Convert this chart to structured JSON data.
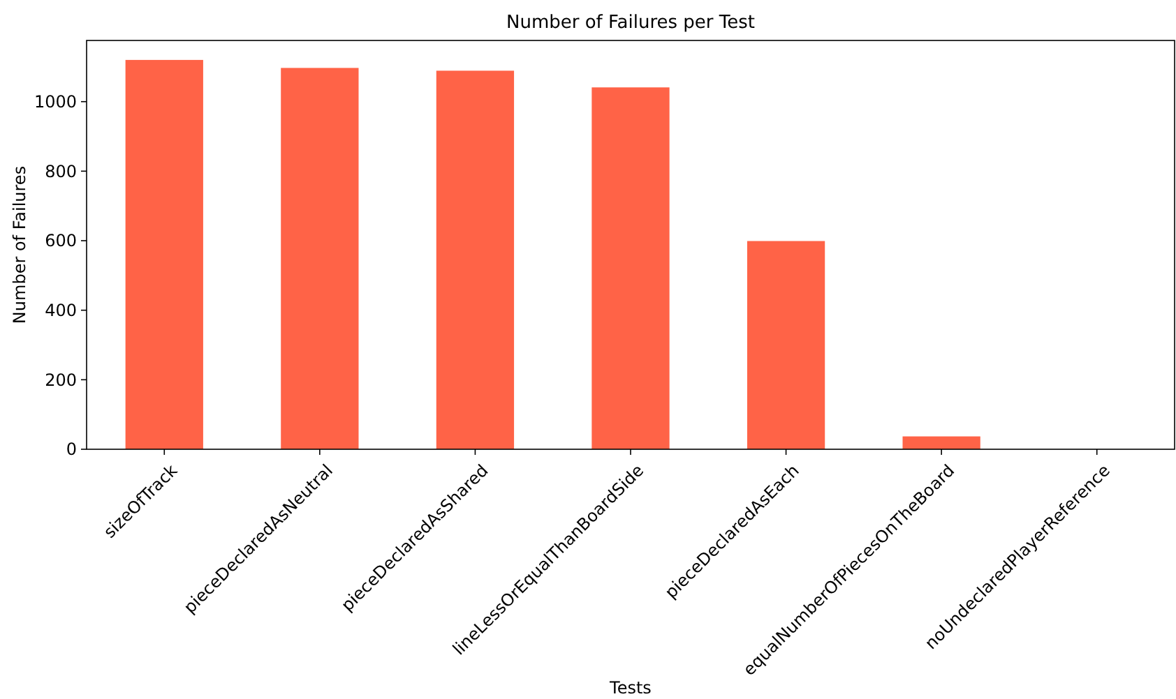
{
  "chart_data": {
    "type": "bar",
    "title": "Number of Failures per Test",
    "xlabel": "Tests",
    "ylabel": "Number of Failures",
    "categories": [
      "sizeOfTrack",
      "pieceDeclaredAsNeutral",
      "pieceDeclaredAsShared",
      "lineLessOrEqualThanBoardSide",
      "pieceDeclaredAsEach",
      "equalNumberOfPiecesOnTheBoard",
      "noUndeclaredPlayerReference"
    ],
    "values": [
      1120,
      1097,
      1089,
      1041,
      599,
      37,
      0
    ],
    "color": "#ff6347",
    "ylim": [
      0,
      1176
    ],
    "yticks": [
      0,
      200,
      400,
      600,
      800,
      1000
    ],
    "grid": false
  }
}
